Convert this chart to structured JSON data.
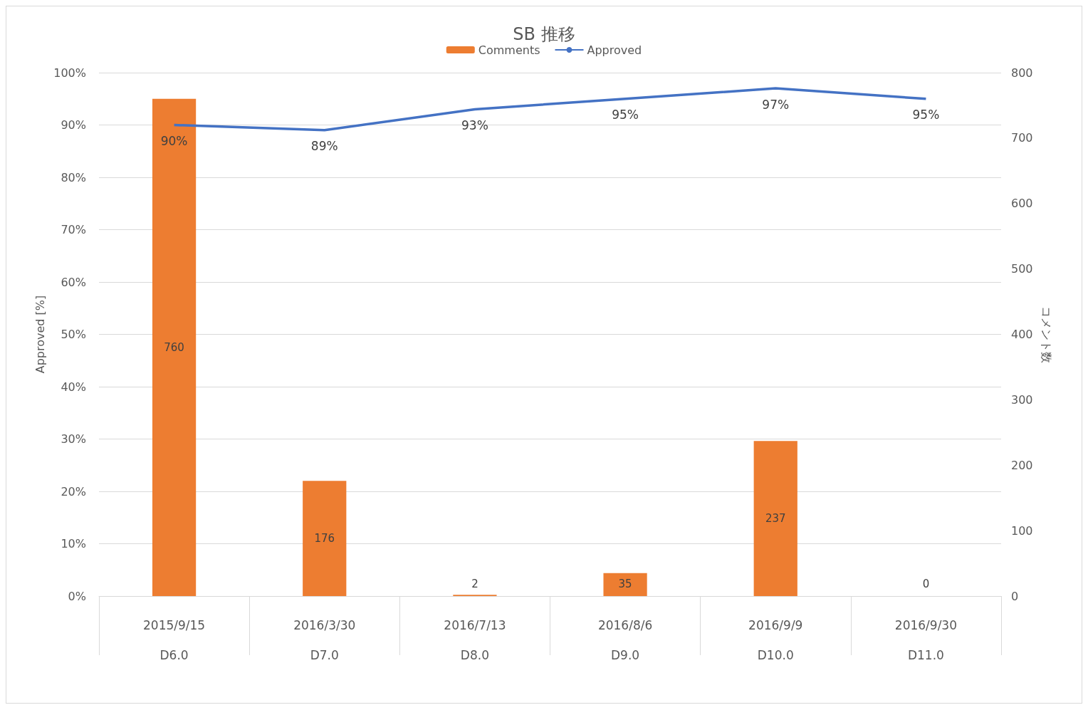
{
  "chart_data": {
    "type": "bar",
    "title": "SB 推移",
    "categories": [
      "2015/9/15\nD6.0",
      "2016/3/30\nD7.0",
      "2016/7/13\nD8.0",
      "2016/8/6\nD9.0",
      "2016/9/9\nD10.0",
      "2016/9/30\nD11.0"
    ],
    "series": [
      {
        "name": "Comments",
        "axis": "y2",
        "color": "#ed7d31",
        "values": [
          760,
          176,
          2,
          35,
          237,
          0
        ],
        "value_labels": [
          "760",
          "176",
          "2",
          "35",
          "237",
          "0"
        ]
      },
      {
        "name": "Approved",
        "type": "line",
        "color": "#4472c4",
        "values": [
          90,
          89,
          93,
          95,
          97,
          95
        ],
        "value_labels": [
          "90%",
          "89%",
          "93%",
          "95%",
          "97%",
          "95%"
        ]
      }
    ],
    "ylabel": "Approved [%]",
    "y2label": "コメント数",
    "ylim": [
      0,
      100
    ],
    "yticks": [
      {
        "value": 0,
        "label": "0%"
      },
      {
        "value": 10,
        "label": "10%"
      },
      {
        "value": 20,
        "label": "20%"
      },
      {
        "value": 30,
        "label": "30%"
      },
      {
        "value": 40,
        "label": "40%"
      },
      {
        "value": 50,
        "label": "50%"
      },
      {
        "value": 60,
        "label": "60%"
      },
      {
        "value": 70,
        "label": "70%"
      },
      {
        "value": 80,
        "label": "80%"
      },
      {
        "value": 90,
        "label": "90%"
      },
      {
        "value": 100,
        "label": "100%"
      }
    ],
    "y2lim": [
      0,
      800
    ],
    "y2ticks": [
      0,
      100,
      200,
      300,
      400,
      500,
      600,
      700,
      800
    ],
    "grid": "y",
    "legend": "top",
    "marker": "none",
    "line_style": "solid"
  }
}
